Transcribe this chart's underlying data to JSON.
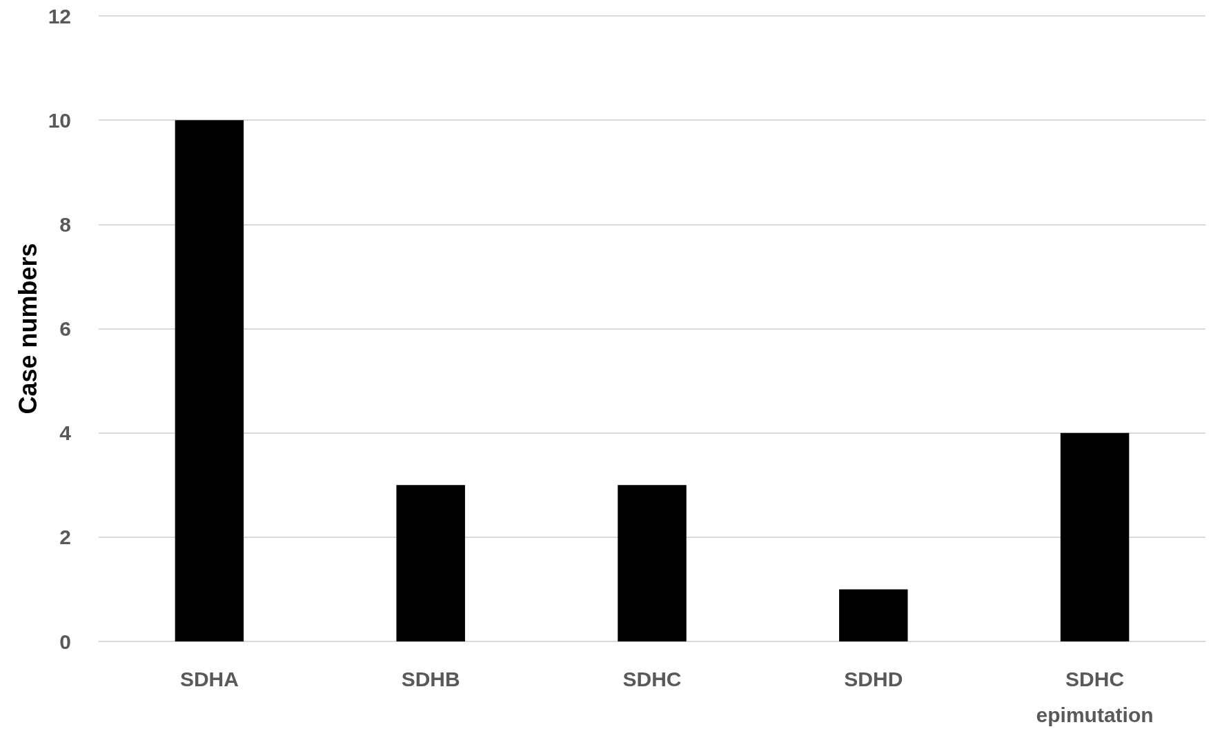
{
  "chart_data": {
    "type": "bar",
    "ylabel": "Case numbers",
    "categories": [
      "SDHA",
      "SDHB",
      "SDHC",
      "SDHD",
      "SDHC\nepimutation"
    ],
    "values": [
      10,
      3,
      3,
      1,
      4
    ],
    "color": "#000000",
    "ylim": [
      0,
      12
    ],
    "yticks": [
      0,
      2,
      4,
      6,
      8,
      10,
      12
    ],
    "grid": "y"
  }
}
